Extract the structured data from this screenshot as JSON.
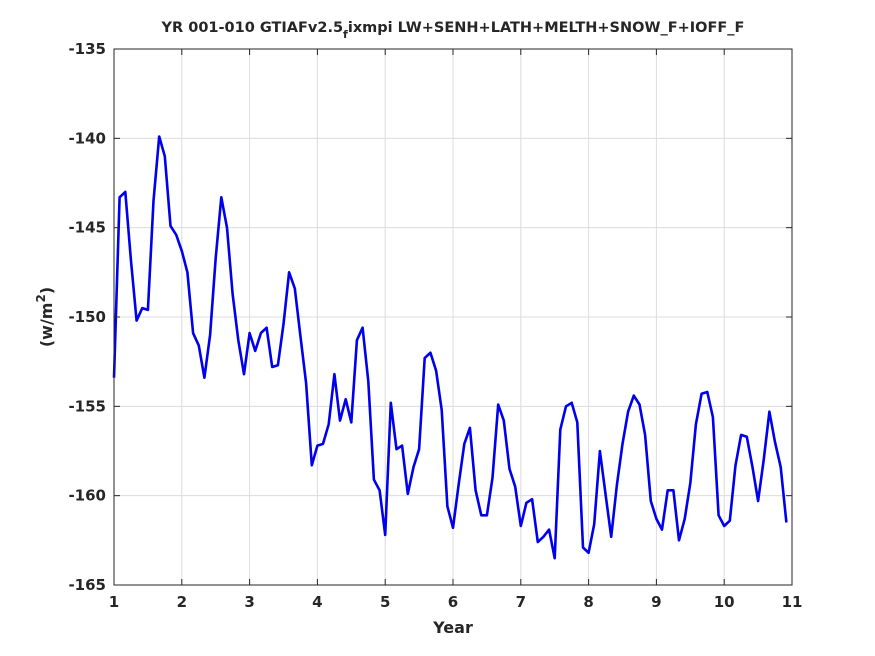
{
  "chart_data": {
    "type": "line",
    "title": "YR 001-010 GTIAFv2.5",
    "title_subscript": "f",
    "title_rest": "ixmpi LW+SENH+LATH+MELTH+SNOW_F+IOFF_F",
    "xlabel": "Year",
    "ylabel": "(w/m",
    "ylabel_superscript": "2",
    "ylabel_close": ")",
    "xlim": [
      1,
      11
    ],
    "ylim": [
      -165,
      -135
    ],
    "xticks": [
      "1",
      "2",
      "3",
      "4",
      "5",
      "6",
      "7",
      "8",
      "9",
      "10",
      "11"
    ],
    "yticks": [
      "-135",
      "-140",
      "-145",
      "-150",
      "-155",
      "-160",
      "-165"
    ],
    "grid": true,
    "line_color": "#0000ee",
    "series": [
      {
        "x": [
          1.0,
          1.083,
          1.167,
          1.25,
          1.333,
          1.417,
          1.5,
          1.583,
          1.667,
          1.75,
          1.833,
          1.917,
          2.0,
          2.083,
          2.167,
          2.25,
          2.333,
          2.417,
          2.5,
          2.583,
          2.667,
          2.75,
          2.833,
          2.917,
          3.0,
          3.083,
          3.167,
          3.25,
          3.333,
          3.417,
          3.5,
          3.583,
          3.667,
          3.75,
          3.833,
          3.917,
          4.0,
          4.083,
          4.167,
          4.25,
          4.333,
          4.417,
          4.5,
          4.583,
          4.667,
          4.75,
          4.833,
          4.917,
          5.0,
          5.083,
          5.167,
          5.25,
          5.333,
          5.417,
          5.5,
          5.583,
          5.667,
          5.75,
          5.833,
          5.917,
          6.0,
          6.083,
          6.167,
          6.25,
          6.333,
          6.417,
          6.5,
          6.583,
          6.667,
          6.75,
          6.833,
          6.917,
          7.0,
          7.083,
          7.167,
          7.25,
          7.333,
          7.417,
          7.5,
          7.583,
          7.667,
          7.75,
          7.833,
          7.917,
          8.0,
          8.083,
          8.167,
          8.25,
          8.333,
          8.417,
          8.5,
          8.583,
          8.667,
          8.75,
          8.833,
          8.917,
          9.0,
          9.083,
          9.167,
          9.25,
          9.333,
          9.417,
          9.5,
          9.583,
          9.667,
          9.75,
          9.833,
          9.917,
          10.0,
          10.083,
          10.167,
          10.25,
          10.333,
          10.417,
          10.5,
          10.583,
          10.667,
          10.75,
          10.833,
          10.917
        ],
        "y": [
          -153.4,
          -143.3,
          -143.0,
          -146.8,
          -150.2,
          -149.5,
          -149.6,
          -143.5,
          -139.9,
          -141.0,
          -144.9,
          -145.4,
          -146.3,
          -147.5,
          -150.9,
          -151.6,
          -153.4,
          -151.0,
          -146.7,
          -143.3,
          -145.0,
          -148.7,
          -151.3,
          -153.2,
          -150.9,
          -151.9,
          -150.9,
          -150.6,
          -152.8,
          -152.7,
          -150.4,
          -147.5,
          -148.4,
          -151.1,
          -153.7,
          -158.3,
          -157.2,
          -157.1,
          -156.0,
          -153.2,
          -155.8,
          -154.6,
          -155.9,
          -151.3,
          -150.6,
          -153.6,
          -159.1,
          -159.7,
          -162.2,
          -154.8,
          -157.4,
          -157.2,
          -159.9,
          -158.4,
          -157.4,
          -152.3,
          -152.0,
          -153.0,
          -155.2,
          -160.6,
          -161.8,
          -159.4,
          -157.1,
          -156.2,
          -159.7,
          -161.1,
          -161.1,
          -159.0,
          -154.9,
          -155.8,
          -158.5,
          -159.5,
          -161.7,
          -160.4,
          -160.2,
          -162.6,
          -162.3,
          -161.9,
          -163.5,
          -156.3,
          -155.0,
          -154.8,
          -155.9,
          -162.9,
          -163.2,
          -161.6,
          -157.5,
          -159.9,
          -162.3,
          -159.4,
          -157.1,
          -155.3,
          -154.4,
          -154.9,
          -156.6,
          -160.3,
          -161.3,
          -161.9,
          -159.7,
          -159.7,
          -162.5,
          -161.3,
          -159.3,
          -156.0,
          -154.3,
          -154.2,
          -155.6,
          -161.1,
          -161.7,
          -161.4,
          -158.3,
          -156.6,
          -156.7,
          -158.4,
          -160.3,
          -158.0,
          -155.3,
          -157.0,
          -158.4,
          -161.5
        ]
      }
    ]
  }
}
